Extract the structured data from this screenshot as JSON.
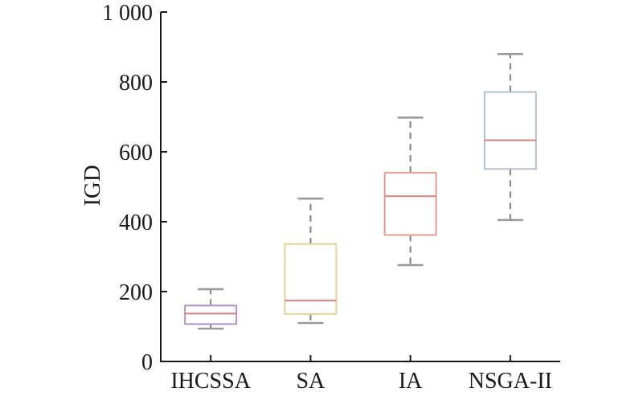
{
  "figure": {
    "background": "#ffffff"
  },
  "chart_data": {
    "type": "boxplot",
    "title": "",
    "xlabel": "",
    "ylabel": "IGD",
    "ylim": [
      0,
      1000
    ],
    "grid": false,
    "legend": "none",
    "yticks": [
      {
        "value": 0,
        "label": "0"
      },
      {
        "value": 200,
        "label": "200"
      },
      {
        "value": 400,
        "label": "400"
      },
      {
        "value": 600,
        "label": "600"
      },
      {
        "value": 800,
        "label": "800"
      },
      {
        "value": 1000,
        "label": "1 000"
      }
    ],
    "categories": [
      "IHCSSA",
      "SA",
      "IA",
      "NSGA-II"
    ],
    "series": [
      {
        "name": "IHCSSA",
        "min": 94,
        "q1": 107,
        "median": 137,
        "q3": 160,
        "max": 207,
        "box_color": "#b292c4"
      },
      {
        "name": "SA",
        "min": 110,
        "q1": 136,
        "median": 174,
        "q3": 336,
        "max": 466,
        "box_color": "#e3d49c"
      },
      {
        "name": "IA",
        "min": 276,
        "q1": 362,
        "median": 473,
        "q3": 540,
        "max": 698,
        "box_color": "#dc9f93"
      },
      {
        "name": "NSGA-II",
        "min": 405,
        "q1": 551,
        "median": 633,
        "q3": 771,
        "max": 880,
        "box_color": "#aec1d1"
      }
    ],
    "median_color": "#cf837d",
    "whisker_color": "#7f7f7f",
    "cap_color": "#999999",
    "box_fill": "#ffffff",
    "axis_color": "#1a1a1a"
  }
}
